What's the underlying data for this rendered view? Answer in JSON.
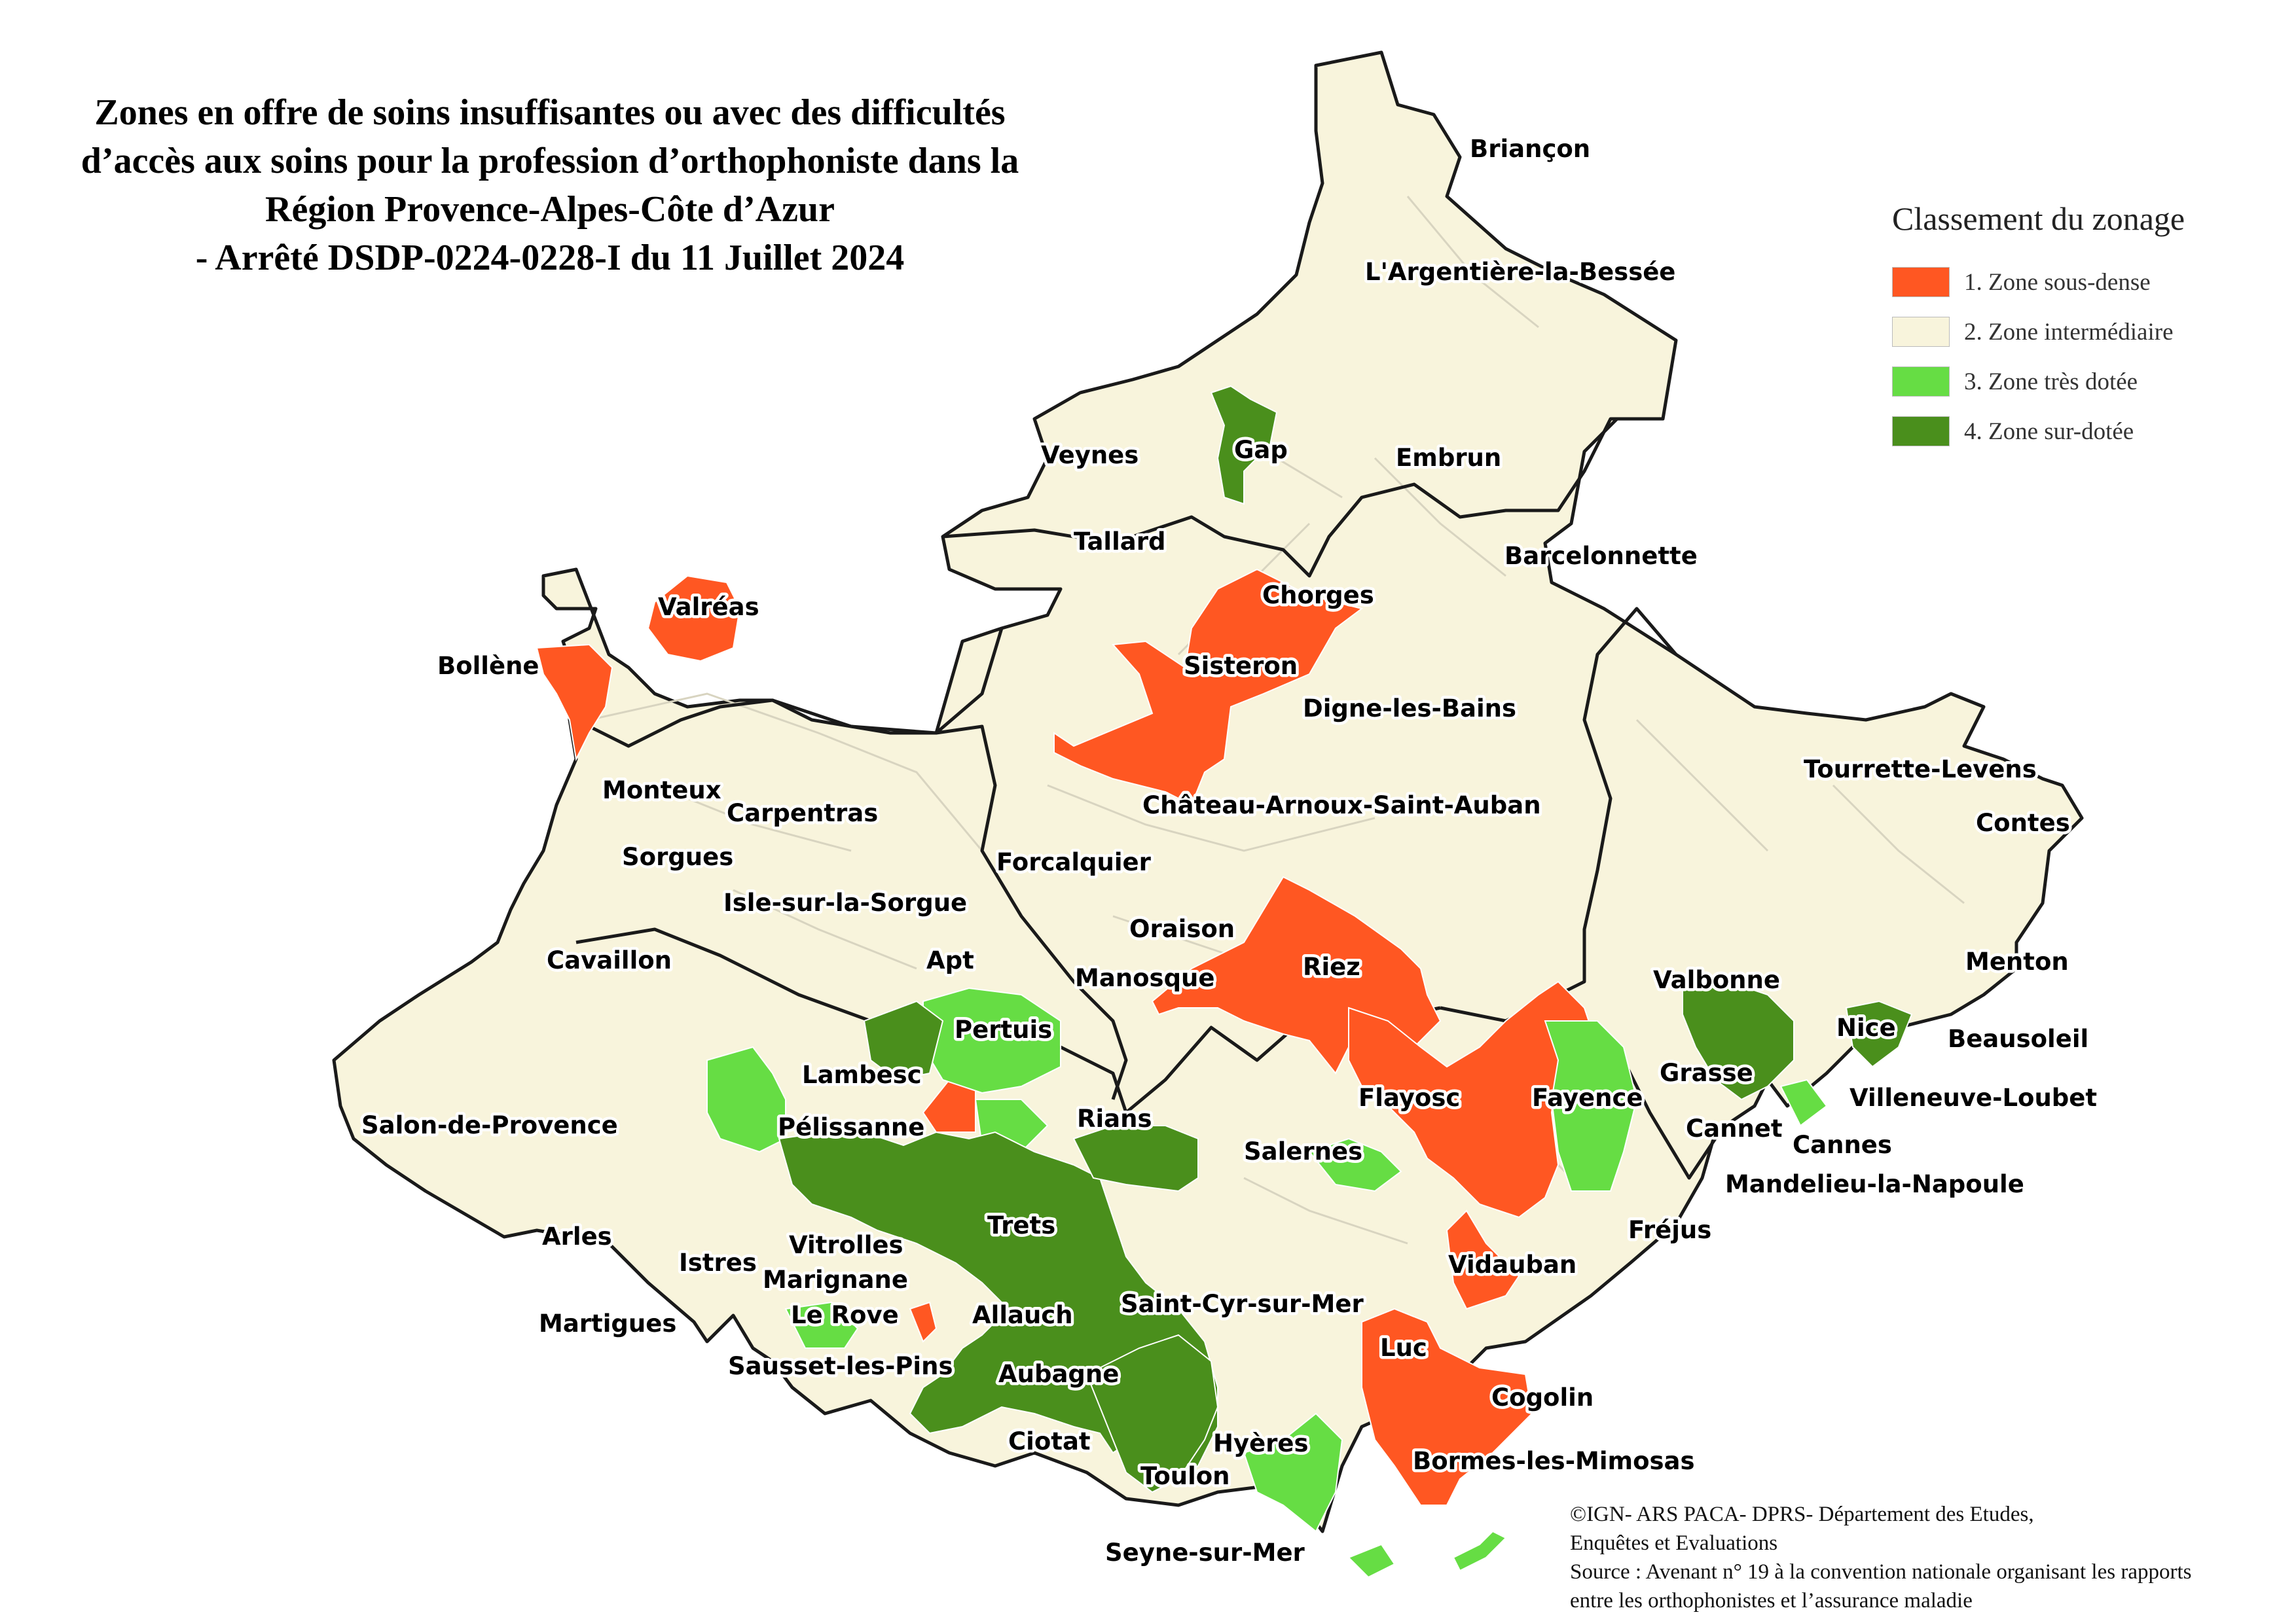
{
  "title": {
    "lines": [
      "Zones en offre de soins insuffisantes ou avec des difficultés",
      "d’accès aux soins pour la profession d’orthophoniste dans la",
      "Région Provence-Alpes-Côte d’Azur",
      "- Arrêté DSDP-0224-0228-I du 11 Juillet 2024"
    ]
  },
  "legend": {
    "title": "Classement du zonage",
    "items": [
      {
        "label": "1. Zone sous-dense",
        "color": "#ff5722"
      },
      {
        "label": "2. Zone intermédiaire",
        "color": "#f8f4dc"
      },
      {
        "label": "3. Zone très dotée",
        "color": "#66dd44"
      },
      {
        "label": "4. Zone sur-dotée",
        "color": "#4a8f1c"
      }
    ]
  },
  "places": [
    "Briançon",
    "L'Argentière-la-Bessée",
    "Gap",
    "Veynes",
    "Embrun",
    "Tallard",
    "Barcelonnette",
    "Chorges",
    "Valréas",
    "Bollène",
    "Sisteron",
    "Digne-les-Bains",
    "Monteux",
    "Carpentras",
    "Château-Arnoux-Saint-Auban",
    "Tourrette-Levens",
    "Contes",
    "Sorgues",
    "Forcalquier",
    "Isle-sur-la-Sorgue",
    "Oraison",
    "Cavaillon",
    "Apt",
    "Manosque",
    "Riez",
    "Valbonne",
    "Menton",
    "Pertuis",
    "Nice",
    "Beausoleil",
    "Lambesc",
    "Grasse",
    "Flayosc",
    "Fayence",
    "Villeneuve-Loubet",
    "Salon-de-Provence",
    "Pélissanne",
    "Rians",
    "Cannet",
    "Cannes",
    "Salernes",
    "Mandelieu-la-Napoule",
    "Trets",
    "Fréjus",
    "Arles",
    "Vitrolles",
    "Istres",
    "Vidauban",
    "Marignane",
    "Saint-Cyr-sur-Mer",
    "Martigues",
    "Le Rove",
    "Allauch",
    "Luc",
    "Sausset-les-Pins",
    "Aubagne",
    "Cogolin",
    "Ciotat",
    "Hyères",
    "Bormes-les-Mimosas",
    "Toulon",
    "Seyne-sur-Mer"
  ],
  "credits": {
    "lines": [
      "©IGN- ARS PACA- DPRS- Département des Etudes,",
      "Enquêtes et Evaluations",
      "Source : Avenant n° 19 à la convention nationale organisant les rapports",
      "entre les orthophonistes et l’assurance maladie"
    ]
  }
}
